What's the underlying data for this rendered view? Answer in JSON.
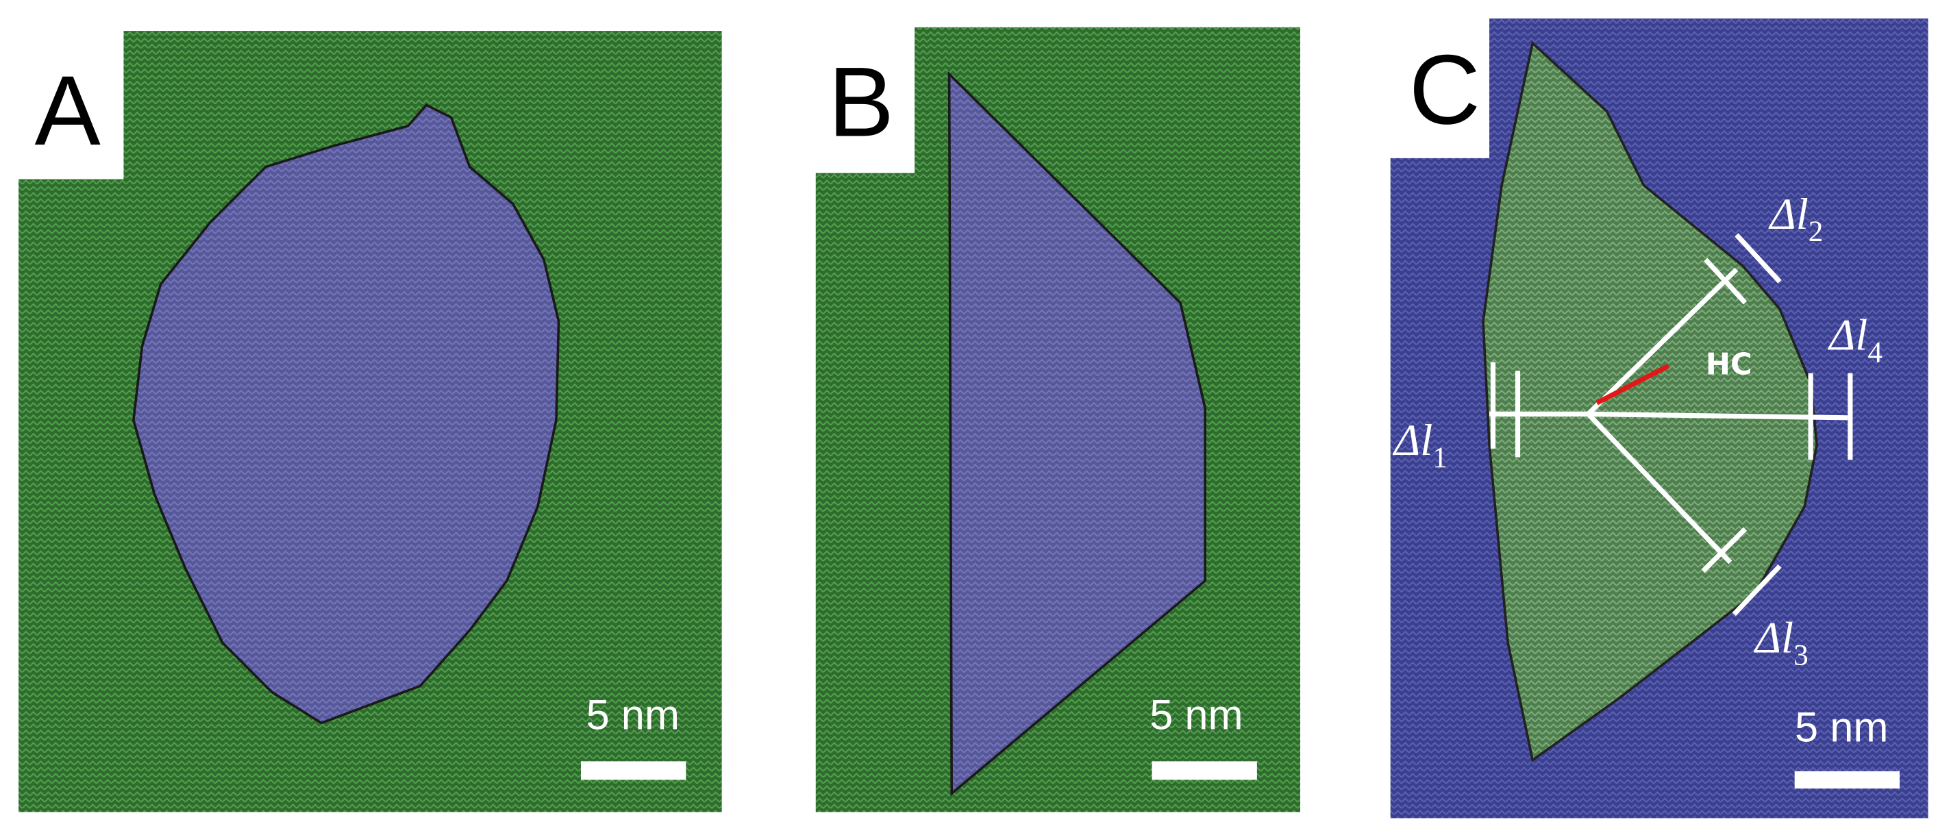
{
  "panels": [
    {
      "label": "A",
      "scale_bar": "5 nm"
    },
    {
      "label": "B",
      "scale_bar": "5 nm"
    },
    {
      "label": "C",
      "scale_bar": "5 nm",
      "annotations": {
        "hc": "HC",
        "dl1": {
          "base": "Δl",
          "sub": "1"
        },
        "dl2": {
          "base": "Δl",
          "sub": "2"
        },
        "dl3": {
          "base": "Δl",
          "sub": "3"
        },
        "dl4": {
          "base": "Δl",
          "sub": "4"
        }
      }
    }
  ]
}
